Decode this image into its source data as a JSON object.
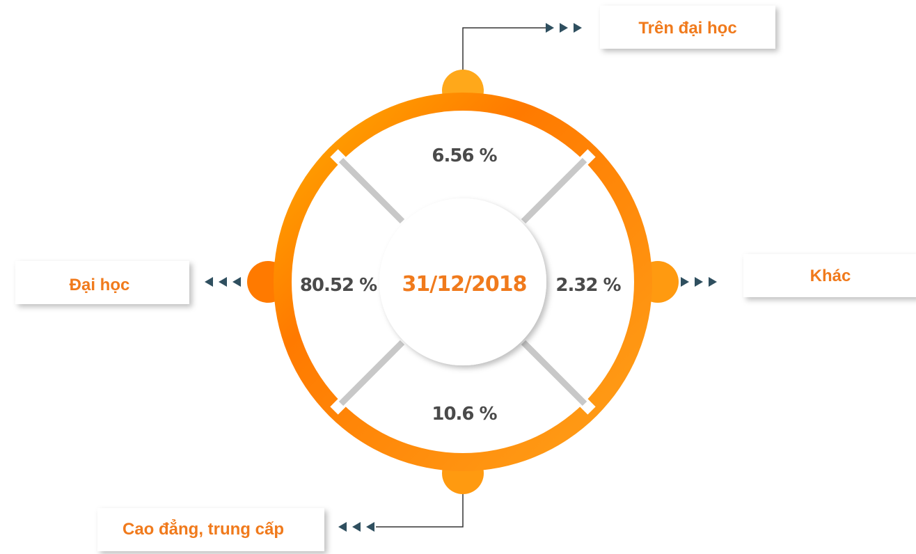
{
  "center_date": "31/12/2018",
  "segments": [
    {
      "label": "Trên đại học",
      "value": "6.56 %"
    },
    {
      "label": "Khác",
      "value": "2.32 %"
    },
    {
      "label": "Cao đẳng, trung cấp",
      "value": "10.6 %"
    },
    {
      "label": "Đại học",
      "value": "80.52 %"
    }
  ]
}
